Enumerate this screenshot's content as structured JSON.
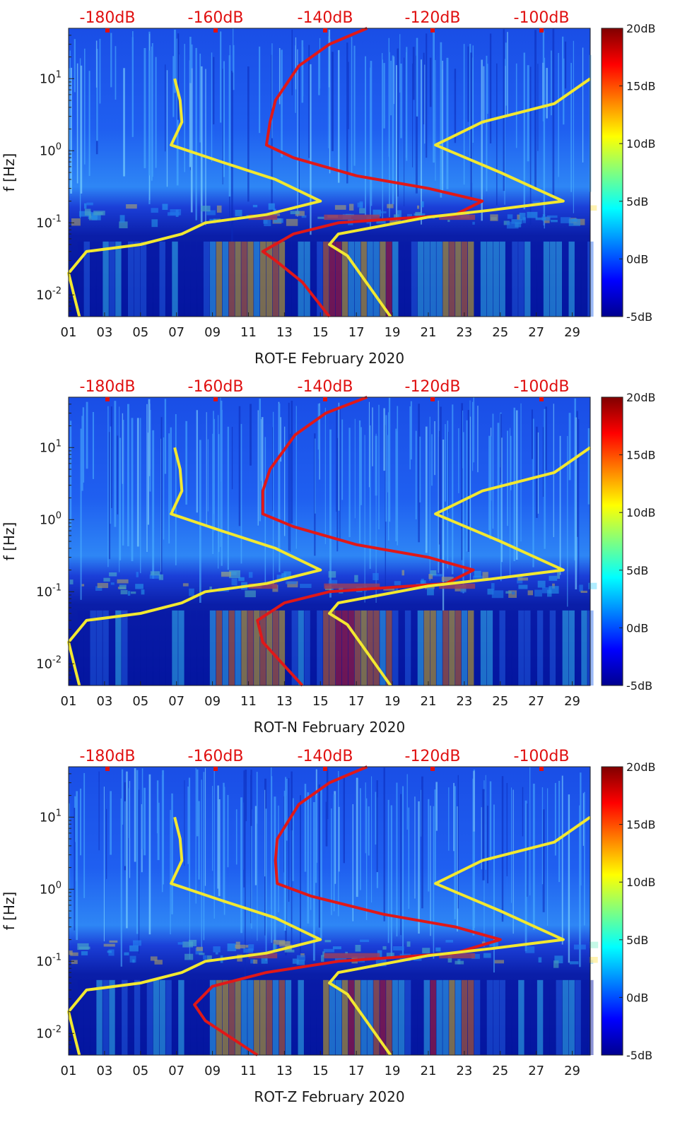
{
  "chart_data": [
    {
      "type": "heatmap",
      "title": "",
      "xlabel": "ROT-E February 2020",
      "ylabel": "f [Hz]",
      "x_ticks": [
        "01",
        "03",
        "05",
        "07",
        "09",
        "11",
        "13",
        "15",
        "17",
        "19",
        "21",
        "23",
        "25",
        "27",
        "29"
      ],
      "x_range": [
        1,
        30
      ],
      "y_ticks": [
        "10^-2",
        "10^-1",
        "10^0",
        "10^1"
      ],
      "y_range_hz": [
        0.005,
        50
      ],
      "y_scale": "log",
      "top_axis_labels": [
        "-180dB",
        "-160dB",
        "-140dB",
        "-120dB",
        "-100dB"
      ],
      "colorbar": {
        "ticks": [
          "20dB",
          "15dB",
          "10dB",
          "5dB",
          "0dB",
          "-5dB"
        ],
        "range_db": [
          -5,
          20
        ],
        "colormap": "jet"
      },
      "series": [
        {
          "name": "red PSD curve",
          "color": "#e01818",
          "points": [
            [
              17.6,
              50
            ],
            [
              15.5,
              30
            ],
            [
              13.8,
              15
            ],
            [
              12.5,
              5
            ],
            [
              12.2,
              2.5
            ],
            [
              12.0,
              1.2
            ],
            [
              13.5,
              0.8
            ],
            [
              17.0,
              0.45
            ],
            [
              21.0,
              0.3
            ],
            [
              24.0,
              0.2
            ],
            [
              22.5,
              0.13
            ],
            [
              16.0,
              0.1
            ],
            [
              13.5,
              0.07
            ],
            [
              11.8,
              0.04
            ],
            [
              12.5,
              0.03
            ],
            [
              14.0,
              0.015
            ],
            [
              15.5,
              0.005
            ]
          ]
        },
        {
          "name": "yellow noise model",
          "color": "#f2e830",
          "points": [
            [
              6.9,
              10
            ],
            [
              7.2,
              5
            ],
            [
              7.3,
              2.5
            ],
            [
              6.7,
              1.2
            ],
            [
              9.5,
              0.7
            ],
            [
              12.5,
              0.4
            ],
            [
              15.0,
              0.2
            ],
            [
              12.0,
              0.13
            ],
            [
              8.6,
              0.1
            ],
            [
              7.3,
              0.07
            ],
            [
              5.0,
              0.05
            ],
            [
              2.0,
              0.04
            ],
            [
              1.0,
              0.02
            ],
            [
              1.3,
              0.01
            ],
            [
              1.6,
              0.005
            ]
          ]
        },
        {
          "name": "yellow noise model 2",
          "color": "#f2e830",
          "points": [
            [
              30,
              10
            ],
            [
              28,
              4.5
            ],
            [
              24,
              2.5
            ],
            [
              21.4,
              1.2
            ],
            [
              25.0,
              0.5
            ],
            [
              28.5,
              0.2
            ],
            [
              24.5,
              0.15
            ],
            [
              21.0,
              0.12
            ],
            [
              16.0,
              0.07
            ],
            [
              15.5,
              0.05
            ],
            [
              16.5,
              0.035
            ],
            [
              18.9,
              0.005
            ]
          ]
        }
      ]
    },
    {
      "type": "heatmap",
      "title": "",
      "xlabel": "ROT-N February 2020",
      "ylabel": "f [Hz]",
      "x_ticks": [
        "01",
        "03",
        "05",
        "07",
        "09",
        "11",
        "13",
        "15",
        "17",
        "19",
        "21",
        "23",
        "25",
        "27",
        "29"
      ],
      "x_range": [
        1,
        30
      ],
      "y_ticks": [
        "10^-2",
        "10^-1",
        "10^0",
        "10^1"
      ],
      "y_range_hz": [
        0.005,
        50
      ],
      "y_scale": "log",
      "top_axis_labels": [
        "-180dB",
        "-160dB",
        "-140dB",
        "-120dB",
        "-100dB"
      ],
      "colorbar": {
        "ticks": [
          "20dB",
          "15dB",
          "10dB",
          "5dB",
          "0dB",
          "-5dB"
        ],
        "range_db": [
          -5,
          20
        ],
        "colormap": "jet"
      },
      "series": [
        {
          "name": "red PSD curve",
          "color": "#e01818",
          "points": [
            [
              17.6,
              50
            ],
            [
              15.3,
              30
            ],
            [
              13.6,
              15
            ],
            [
              12.2,
              5
            ],
            [
              11.8,
              2.5
            ],
            [
              11.8,
              1.2
            ],
            [
              13.5,
              0.8
            ],
            [
              17.0,
              0.45
            ],
            [
              21.0,
              0.3
            ],
            [
              23.5,
              0.2
            ],
            [
              22.0,
              0.13
            ],
            [
              15.5,
              0.1
            ],
            [
              13.0,
              0.07
            ],
            [
              11.5,
              0.04
            ],
            [
              11.8,
              0.02
            ],
            [
              14.0,
              0.005
            ]
          ]
        },
        {
          "name": "yellow noise model",
          "color": "#f2e830",
          "points": [
            [
              6.9,
              10
            ],
            [
              7.2,
              5
            ],
            [
              7.3,
              2.5
            ],
            [
              6.7,
              1.2
            ],
            [
              9.5,
              0.7
            ],
            [
              12.5,
              0.4
            ],
            [
              15.0,
              0.2
            ],
            [
              12.0,
              0.13
            ],
            [
              8.6,
              0.1
            ],
            [
              7.3,
              0.07
            ],
            [
              5.0,
              0.05
            ],
            [
              2.0,
              0.04
            ],
            [
              1.0,
              0.02
            ],
            [
              1.3,
              0.01
            ],
            [
              1.6,
              0.005
            ]
          ]
        },
        {
          "name": "yellow noise model 2",
          "color": "#f2e830",
          "points": [
            [
              30,
              10
            ],
            [
              28,
              4.5
            ],
            [
              24,
              2.5
            ],
            [
              21.4,
              1.2
            ],
            [
              25.0,
              0.5
            ],
            [
              28.5,
              0.2
            ],
            [
              24.5,
              0.15
            ],
            [
              21.0,
              0.12
            ],
            [
              16.0,
              0.07
            ],
            [
              15.5,
              0.05
            ],
            [
              16.5,
              0.035
            ],
            [
              18.9,
              0.005
            ]
          ]
        }
      ]
    },
    {
      "type": "heatmap",
      "title": "",
      "xlabel": "ROT-Z February 2020",
      "ylabel": "f [Hz]",
      "x_ticks": [
        "01",
        "03",
        "05",
        "07",
        "09",
        "11",
        "13",
        "15",
        "17",
        "19",
        "21",
        "23",
        "25",
        "27",
        "29"
      ],
      "x_range": [
        1,
        30
      ],
      "y_ticks": [
        "10^-2",
        "10^-1",
        "10^0",
        "10^1"
      ],
      "y_range_hz": [
        0.005,
        50
      ],
      "y_scale": "log",
      "top_axis_labels": [
        "-180dB",
        "-160dB",
        "-140dB",
        "-120dB",
        "-100dB"
      ],
      "colorbar": {
        "ticks": [
          "20dB",
          "15dB",
          "10dB",
          "5dB",
          "0dB",
          "-5dB"
        ],
        "range_db": [
          -5,
          20
        ],
        "colormap": "jet"
      },
      "series": [
        {
          "name": "red PSD curve",
          "color": "#e01818",
          "points": [
            [
              17.6,
              50
            ],
            [
              15.5,
              30
            ],
            [
              13.8,
              15
            ],
            [
              12.6,
              5
            ],
            [
              12.5,
              2.5
            ],
            [
              12.6,
              1.2
            ],
            [
              14.5,
              0.8
            ],
            [
              18.5,
              0.45
            ],
            [
              22.5,
              0.3
            ],
            [
              25.0,
              0.2
            ],
            [
              22.5,
              0.13
            ],
            [
              16.0,
              0.1
            ],
            [
              12.0,
              0.07
            ],
            [
              9.0,
              0.045
            ],
            [
              8.0,
              0.025
            ],
            [
              8.6,
              0.015
            ],
            [
              11.5,
              0.005
            ]
          ]
        },
        {
          "name": "yellow noise model",
          "color": "#f2e830",
          "points": [
            [
              6.9,
              10
            ],
            [
              7.2,
              5
            ],
            [
              7.3,
              2.5
            ],
            [
              6.7,
              1.2
            ],
            [
              9.5,
              0.7
            ],
            [
              12.5,
              0.4
            ],
            [
              15.0,
              0.2
            ],
            [
              12.0,
              0.13
            ],
            [
              8.6,
              0.1
            ],
            [
              7.3,
              0.07
            ],
            [
              5.0,
              0.05
            ],
            [
              2.0,
              0.04
            ],
            [
              1.0,
              0.02
            ],
            [
              1.3,
              0.01
            ],
            [
              1.6,
              0.005
            ]
          ]
        },
        {
          "name": "yellow noise model 2",
          "color": "#f2e830",
          "points": [
            [
              30,
              10
            ],
            [
              28,
              4.5
            ],
            [
              24,
              2.5
            ],
            [
              21.4,
              1.2
            ],
            [
              25.0,
              0.5
            ],
            [
              28.5,
              0.2
            ],
            [
              24.5,
              0.15
            ],
            [
              21.0,
              0.12
            ],
            [
              16.0,
              0.07
            ],
            [
              15.5,
              0.05
            ],
            [
              16.5,
              0.035
            ],
            [
              18.9,
              0.005
            ]
          ]
        }
      ]
    }
  ]
}
